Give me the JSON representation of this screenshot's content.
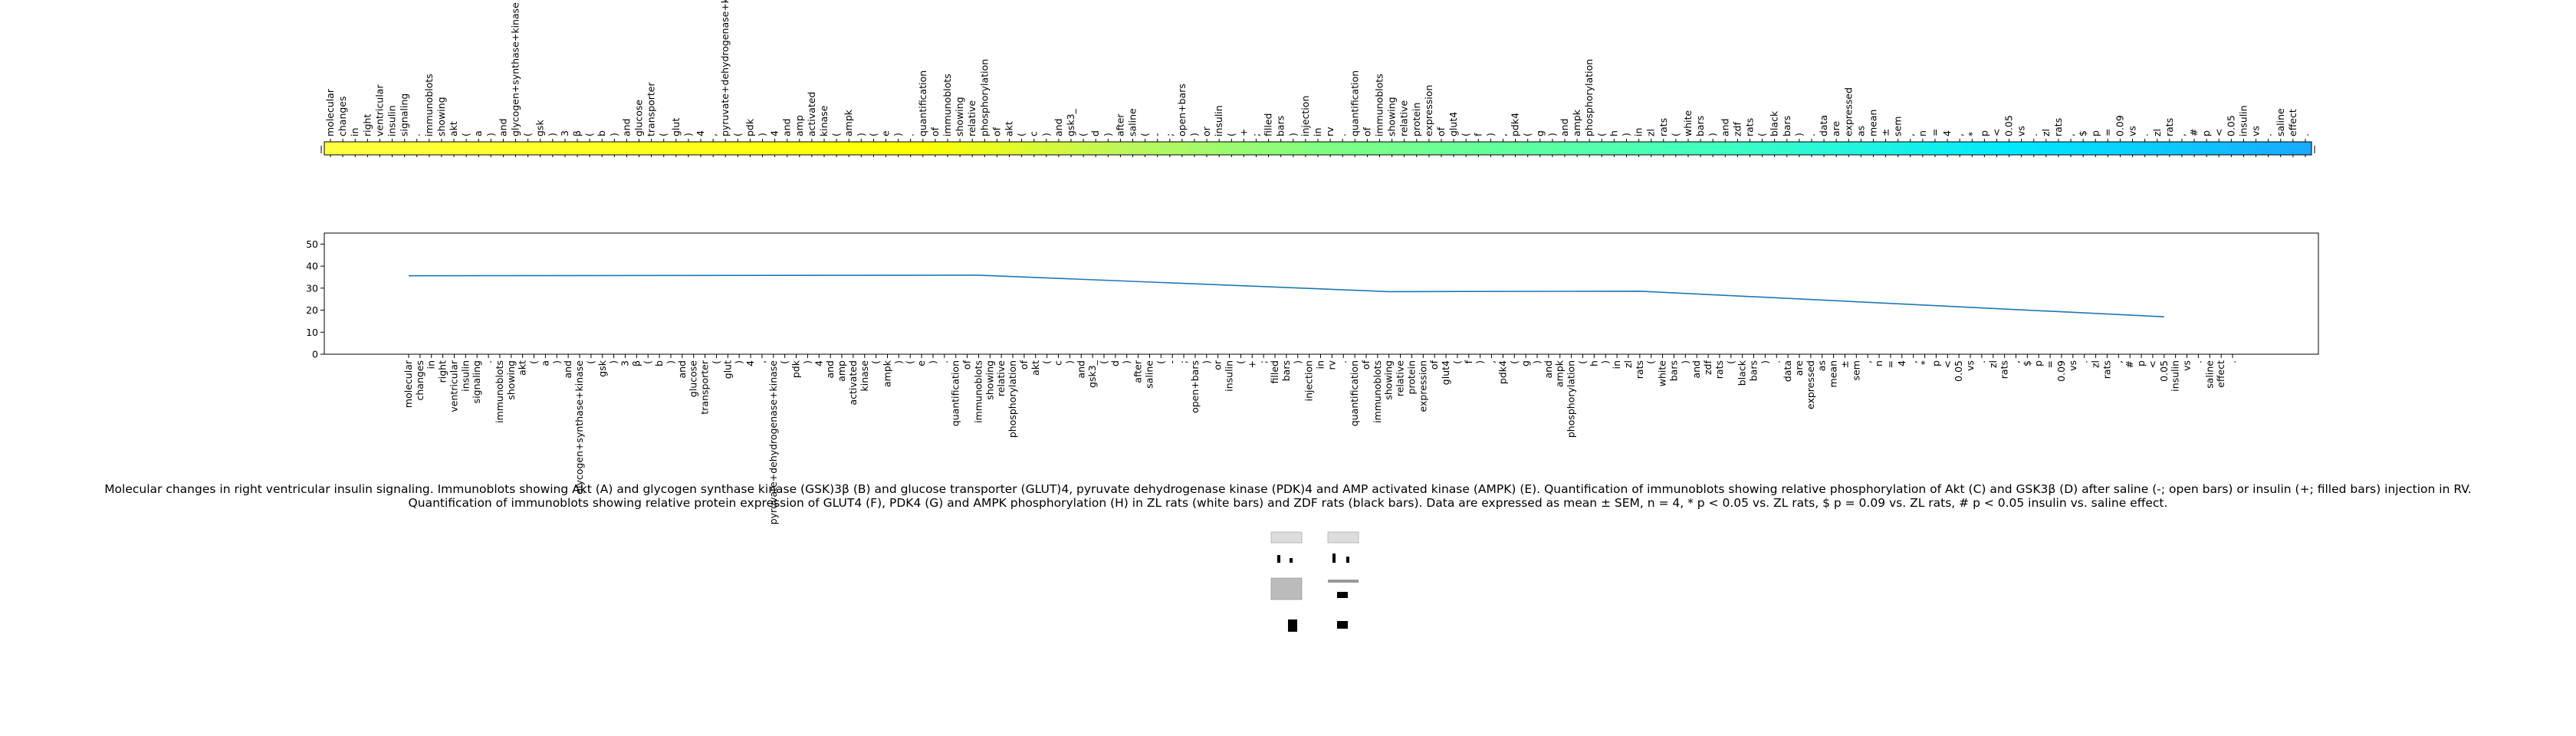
{
  "chart_data": [
    {
      "type": "heatmap",
      "colormap": "yellow-to-light-blue",
      "tick_labels": [
        "molecular",
        "changes",
        "in",
        "right",
        "ventricular",
        "insulin",
        "signaling",
        ".",
        "immunoblots",
        "showing",
        "akt",
        "(",
        "a",
        ")",
        "and",
        "glycogen+synthase+kinase",
        "(",
        "gsk",
        ")",
        "3",
        "β",
        "(",
        "b",
        ")",
        "and",
        "glucose",
        "transporter",
        "(",
        "glut",
        ")",
        "4",
        ",",
        "pyruvate+dehydrogenase+kinase",
        "(",
        "pdk",
        ")",
        "4",
        "and",
        "amp",
        "activated",
        "kinase",
        "(",
        "ampk",
        ")",
        "(",
        "e",
        ")",
        ".",
        "quantification",
        "of",
        "immunoblots",
        "showing",
        "relative",
        "phosphorylation",
        "of",
        "akt",
        "(",
        "c",
        ")",
        "and",
        "gsk3_",
        "(",
        "d",
        ")",
        "after",
        "saline",
        "(",
        "-",
        ";",
        "open+bars",
        ")",
        "or",
        "insulin",
        "(",
        "+",
        ";",
        "filled",
        "bars",
        ")",
        "injection",
        "in",
        "rv",
        ".",
        "quantification",
        "of",
        "immunoblots",
        "showing",
        "relative",
        "protein",
        "expression",
        "of",
        "glut4",
        "(",
        "f",
        ")",
        ",",
        "pdk4",
        "(",
        "g",
        ")",
        "and",
        "ampk",
        "phosphorylation",
        "(",
        "h",
        ")",
        "in",
        "zl",
        "rats",
        "(",
        "white",
        "bars",
        ")",
        "and",
        "zdf",
        "rats",
        "(",
        "black",
        "bars",
        ")",
        ".",
        "data",
        "are",
        "expressed",
        "as",
        "mean",
        "±",
        "sem",
        ",",
        "n",
        "=",
        "4",
        ",",
        "*",
        "p",
        "<",
        "0.05",
        "vs",
        ".",
        "zl",
        "rats",
        ",",
        "$",
        "p",
        "=",
        "0.09",
        "vs",
        ".",
        "zl",
        "rats",
        ",",
        "#",
        "p",
        "<",
        "0.05",
        "insulin",
        "vs",
        ".",
        "saline",
        "effect",
        "."
      ]
    },
    {
      "type": "line",
      "ylim": [
        0,
        55
      ],
      "yticks": [
        0,
        10,
        20,
        30,
        40,
        50
      ],
      "x_tick_labels": [
        "molecular",
        "changes",
        "in",
        "right",
        "ventricular",
        "insulin",
        "signaling",
        ".",
        "immunoblots",
        "showing",
        "akt",
        "(",
        "a",
        ")",
        "and",
        "glycogen+synthase+kinase",
        "(",
        "gsk",
        ")",
        "3",
        "β",
        "(",
        "b",
        ")",
        "and",
        "glucose",
        "transporter",
        "(",
        "glut",
        ")",
        "4",
        ",",
        "pyruvate+dehydrogenase+kinase",
        "(",
        "pdk",
        ")",
        "4",
        "and",
        "amp",
        "activated",
        "kinase",
        "(",
        "ampk",
        ")",
        "(",
        "e",
        ")",
        ".",
        "quantification",
        "of",
        "immunoblots",
        "showing",
        "relative",
        "phosphorylation",
        "of",
        "akt",
        "(",
        "c",
        ")",
        "and",
        "gsk3_",
        "(",
        "d",
        ")",
        "after",
        "saline",
        "(",
        "-",
        ";",
        "open+bars",
        ")",
        "or",
        "insulin",
        "(",
        "+",
        ";",
        "filled",
        "bars",
        ")",
        "injection",
        "in",
        "rv",
        ".",
        "quantification",
        "of",
        "immunoblots",
        "showing",
        "relative",
        "protein",
        "expression",
        "of",
        "glut4",
        "(",
        "f",
        ")",
        ",",
        "pdk4",
        "(",
        "g",
        ")",
        "and",
        "ampk",
        "phosphorylation",
        "(",
        "h",
        ")",
        "in",
        "zl",
        "rats",
        "(",
        "white",
        "bars",
        ")",
        "and",
        "zdf",
        "rats",
        "(",
        "black",
        "bars",
        ")",
        ".",
        "data",
        "are",
        "expressed",
        "as",
        "mean",
        "±",
        "sem",
        ",",
        "n",
        "=",
        "4",
        ",",
        "*",
        "p",
        "<",
        "0.05",
        "vs",
        ".",
        "zl",
        "rats",
        ",",
        "$",
        "p",
        "=",
        "0.09",
        "vs",
        ".",
        "zl",
        "rats",
        ",",
        "#",
        "p",
        "<",
        "0.05",
        "insulin",
        "vs",
        ".",
        "saline",
        "effect",
        "."
      ],
      "series": [
        {
          "color": "#1f77b4",
          "points": [
            [
              0,
              35.6
            ],
            [
              50,
              35.9
            ],
            [
              86,
              28.4
            ],
            [
              108,
              28.6
            ],
            [
              154,
              17.0
            ]
          ]
        }
      ]
    }
  ],
  "caption": {
    "line1": "Molecular changes in right ventricular insulin signaling. Immunoblots showing Akt (A) and glycogen synthase kinase (GSK)3β (B) and glucose transporter (GLUT)4, pyruvate dehydrogenase kinase (PDK)4 and AMP activated kinase (AMPK) (E). Quantification of immunoblots showing relative phosphorylation of Akt (C) and GSK3β (D) after saline (-; open bars) or insulin (+; filled bars) injection in RV.",
    "line2": "Quantification of immunoblots showing relative protein expression of GLUT4 (F), PDK4 (G) and AMPK phosphorylation (H) in ZL rats (white bars) and ZDF rats (black bars). Data are expressed as mean ± SEM, n = 4, * p < 0.05 vs. ZL rats, $ p = 0.09 vs. ZL rats, # p < 0.05 insulin vs. saline effect."
  }
}
